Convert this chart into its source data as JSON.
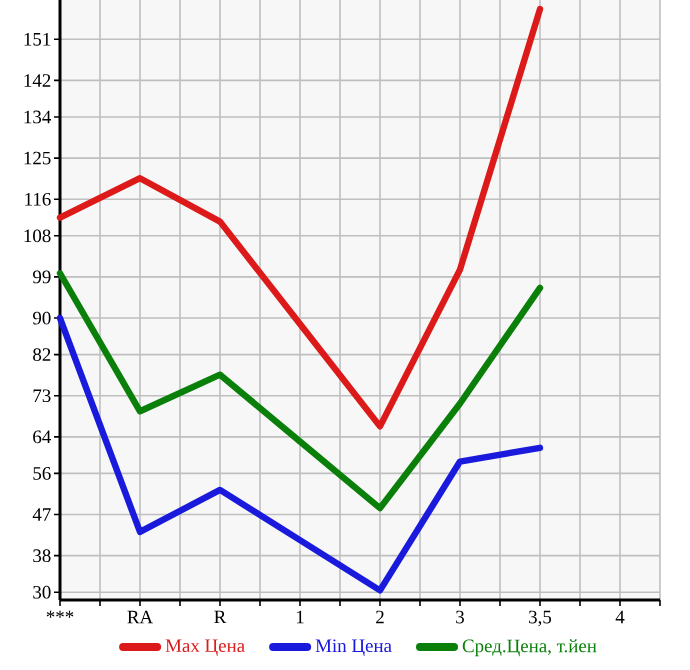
{
  "chart_data": {
    "type": "line",
    "categories": [
      "***",
      "RA",
      "R",
      "1",
      "2",
      "3",
      "3,5",
      "4"
    ],
    "series": [
      {
        "name": "Max Цена",
        "color": "#dd1a1a",
        "values": [
          112.0,
          120.6,
          111.1,
          88.7,
          66.3,
          100.6,
          157.6,
          null
        ]
      },
      {
        "name": "Min Цена",
        "color": "#1a1add",
        "values": [
          90.0,
          43.2,
          52.4,
          41.4,
          30.4,
          58.6,
          61.6,
          null
        ]
      },
      {
        "name": "Сред.Цена, т.йен",
        "color": "#0a800a",
        "values": [
          99.8,
          69.6,
          77.6,
          63.0,
          48.4,
          71.3,
          96.6,
          null
        ]
      }
    ],
    "ylim": [
      28.3,
      159.6
    ],
    "yticks": [
      30,
      38,
      47,
      56,
      64,
      73,
      82,
      90,
      99,
      108,
      116,
      125,
      134,
      142,
      151
    ],
    "grid": true,
    "legend": "bottom",
    "marker": "none",
    "line_style": "solid"
  }
}
